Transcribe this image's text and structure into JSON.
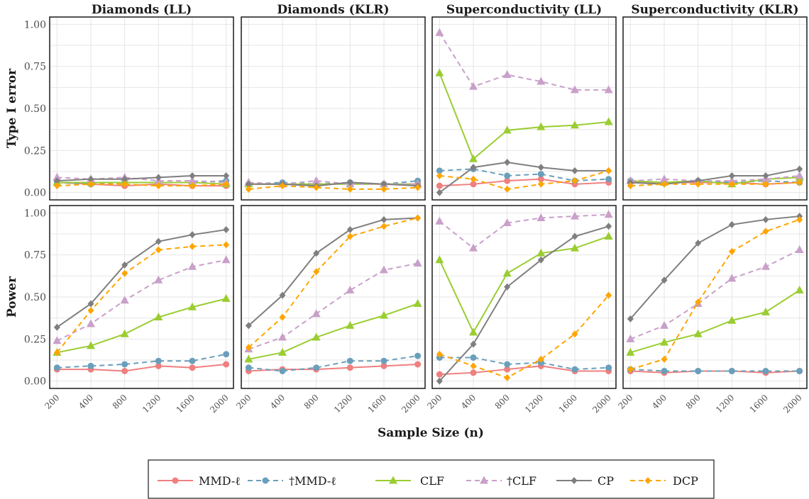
{
  "chart_data": {
    "type": "line",
    "x_categories": [
      "200",
      "400",
      "800",
      "1200",
      "1600",
      "2000"
    ],
    "xlabel": "Sample Size (n)",
    "ylim": [
      0,
      1
    ],
    "yticks": [
      "0.00",
      "0.25",
      "0.50",
      "0.75",
      "1.00"
    ],
    "grid": true,
    "legend_position": "bottom",
    "columns": [
      "Diamonds (LL)",
      "Diamonds (KLR)",
      "Superconductivity (LL)",
      "Superconductivity (KLR)"
    ],
    "rows": [
      "Type I error",
      "Power"
    ],
    "series_styles": [
      {
        "name": "MMD-ℓ",
        "color": "#F07F7F",
        "dashed": false,
        "marker": "circle"
      },
      {
        "name": "†MMD-ℓ",
        "color": "#6A9FBB",
        "dashed": true,
        "marker": "circle"
      },
      {
        "name": "CLF",
        "color": "#9ACD32",
        "dashed": false,
        "marker": "triangle"
      },
      {
        "name": "†CLF",
        "color": "#C9A0C9",
        "dashed": true,
        "marker": "triangle"
      },
      {
        "name": "CP",
        "color": "#7F7F7F",
        "dashed": false,
        "marker": "diamond"
      },
      {
        "name": "DCP",
        "color": "#FFA500",
        "dashed": true,
        "marker": "diamond"
      }
    ],
    "panels": [
      {
        "row": 0,
        "col": 0,
        "series": [
          {
            "name": "MMD-ℓ",
            "values": [
              0.06,
              0.05,
              0.04,
              0.05,
              0.04,
              0.04
            ]
          },
          {
            "name": "†MMD-ℓ",
            "values": [
              0.06,
              0.05,
              0.06,
              0.06,
              0.06,
              0.07
            ]
          },
          {
            "name": "CLF",
            "values": [
              0.06,
              0.06,
              0.06,
              0.06,
              0.06,
              0.05
            ]
          },
          {
            "name": "†CLF",
            "values": [
              0.09,
              0.08,
              0.09,
              0.07,
              0.07,
              0.06
            ]
          },
          {
            "name": "CP",
            "values": [
              0.07,
              0.08,
              0.08,
              0.09,
              0.1,
              0.1
            ]
          },
          {
            "name": "DCP",
            "values": [
              0.04,
              0.05,
              0.05,
              0.04,
              0.04,
              0.05
            ]
          }
        ]
      },
      {
        "row": 0,
        "col": 1,
        "series": [
          {
            "name": "MMD-ℓ",
            "values": [
              0.05,
              0.05,
              0.04,
              0.06,
              0.05,
              0.05
            ]
          },
          {
            "name": "†MMD-ℓ",
            "values": [
              0.05,
              0.06,
              0.05,
              0.06,
              0.05,
              0.07
            ]
          },
          {
            "name": "CLF",
            "values": [
              0.05,
              0.05,
              0.05,
              0.05,
              0.05,
              0.05
            ]
          },
          {
            "name": "†CLF",
            "values": [
              0.06,
              0.05,
              0.07,
              0.05,
              0.05,
              0.05
            ]
          },
          {
            "name": "CP",
            "values": [
              0.05,
              0.05,
              0.04,
              0.06,
              0.05,
              0.04
            ]
          },
          {
            "name": "DCP",
            "values": [
              0.02,
              0.04,
              0.03,
              0.02,
              0.02,
              0.03
            ]
          }
        ]
      },
      {
        "row": 0,
        "col": 2,
        "series": [
          {
            "name": "MMD-ℓ",
            "values": [
              0.04,
              0.05,
              0.07,
              0.08,
              0.05,
              0.06
            ]
          },
          {
            "name": "†MMD-ℓ",
            "values": [
              0.13,
              0.14,
              0.1,
              0.11,
              0.07,
              0.08
            ]
          },
          {
            "name": "CLF",
            "values": [
              0.71,
              0.2,
              0.37,
              0.39,
              0.4,
              0.42
            ]
          },
          {
            "name": "†CLF",
            "values": [
              0.95,
              0.63,
              0.7,
              0.66,
              0.61,
              0.61
            ]
          },
          {
            "name": "CP",
            "values": [
              0.0,
              0.15,
              0.18,
              0.15,
              0.13,
              0.13
            ]
          },
          {
            "name": "DCP",
            "values": [
              0.1,
              0.08,
              0.02,
              0.05,
              0.07,
              0.13
            ]
          }
        ]
      },
      {
        "row": 0,
        "col": 3,
        "series": [
          {
            "name": "MMD-ℓ",
            "values": [
              0.06,
              0.06,
              0.06,
              0.06,
              0.05,
              0.06
            ]
          },
          {
            "name": "†MMD-ℓ",
            "values": [
              0.07,
              0.06,
              0.07,
              0.06,
              0.07,
              0.06
            ]
          },
          {
            "name": "CLF",
            "values": [
              0.07,
              0.06,
              0.07,
              0.05,
              0.08,
              0.09
            ]
          },
          {
            "name": "†CLF",
            "values": [
              0.07,
              0.08,
              0.07,
              0.07,
              0.08,
              0.1
            ]
          },
          {
            "name": "CP",
            "values": [
              0.06,
              0.05,
              0.07,
              0.1,
              0.1,
              0.14
            ]
          },
          {
            "name": "DCP",
            "values": [
              0.04,
              0.05,
              0.05,
              0.05,
              0.05,
              0.06
            ]
          }
        ]
      },
      {
        "row": 1,
        "col": 0,
        "series": [
          {
            "name": "MMD-ℓ",
            "values": [
              0.07,
              0.07,
              0.06,
              0.09,
              0.08,
              0.1
            ]
          },
          {
            "name": "†MMD-ℓ",
            "values": [
              0.08,
              0.09,
              0.1,
              0.12,
              0.12,
              0.16
            ]
          },
          {
            "name": "CLF",
            "values": [
              0.17,
              0.21,
              0.28,
              0.38,
              0.44,
              0.49
            ]
          },
          {
            "name": "†CLF",
            "values": [
              0.24,
              0.34,
              0.48,
              0.6,
              0.68,
              0.72
            ]
          },
          {
            "name": "CP",
            "values": [
              0.32,
              0.46,
              0.69,
              0.83,
              0.87,
              0.9
            ]
          },
          {
            "name": "DCP",
            "values": [
              0.17,
              0.42,
              0.64,
              0.78,
              0.8,
              0.81
            ]
          }
        ]
      },
      {
        "row": 1,
        "col": 1,
        "series": [
          {
            "name": "MMD-ℓ",
            "values": [
              0.06,
              0.07,
              0.07,
              0.08,
              0.09,
              0.1
            ]
          },
          {
            "name": "†MMD-ℓ",
            "values": [
              0.08,
              0.06,
              0.08,
              0.12,
              0.12,
              0.15
            ]
          },
          {
            "name": "CLF",
            "values": [
              0.13,
              0.17,
              0.26,
              0.33,
              0.39,
              0.46
            ]
          },
          {
            "name": "†CLF",
            "values": [
              0.19,
              0.26,
              0.4,
              0.54,
              0.66,
              0.7
            ]
          },
          {
            "name": "CP",
            "values": [
              0.33,
              0.51,
              0.76,
              0.9,
              0.96,
              0.97
            ]
          },
          {
            "name": "DCP",
            "values": [
              0.2,
              0.38,
              0.65,
              0.86,
              0.92,
              0.97
            ]
          }
        ]
      },
      {
        "row": 1,
        "col": 2,
        "series": [
          {
            "name": "MMD-ℓ",
            "values": [
              0.04,
              0.05,
              0.07,
              0.09,
              0.06,
              0.06
            ]
          },
          {
            "name": "†MMD-ℓ",
            "values": [
              0.14,
              0.14,
              0.1,
              0.11,
              0.07,
              0.08
            ]
          },
          {
            "name": "CLF",
            "values": [
              0.72,
              0.29,
              0.64,
              0.76,
              0.79,
              0.86
            ]
          },
          {
            "name": "†CLF",
            "values": [
              0.95,
              0.79,
              0.94,
              0.97,
              0.98,
              0.99
            ]
          },
          {
            "name": "CP",
            "values": [
              0.0,
              0.22,
              0.56,
              0.72,
              0.86,
              0.92
            ]
          },
          {
            "name": "DCP",
            "values": [
              0.16,
              0.09,
              0.02,
              0.13,
              0.28,
              0.51
            ]
          }
        ]
      },
      {
        "row": 1,
        "col": 3,
        "series": [
          {
            "name": "MMD-ℓ",
            "values": [
              0.06,
              0.05,
              0.06,
              0.06,
              0.05,
              0.06
            ]
          },
          {
            "name": "†MMD-ℓ",
            "values": [
              0.07,
              0.06,
              0.06,
              0.06,
              0.06,
              0.06
            ]
          },
          {
            "name": "CLF",
            "values": [
              0.17,
              0.23,
              0.28,
              0.36,
              0.41,
              0.54
            ]
          },
          {
            "name": "†CLF",
            "values": [
              0.25,
              0.33,
              0.46,
              0.61,
              0.68,
              0.78
            ]
          },
          {
            "name": "CP",
            "values": [
              0.37,
              0.6,
              0.82,
              0.93,
              0.96,
              0.98
            ]
          },
          {
            "name": "DCP",
            "values": [
              0.07,
              0.13,
              0.47,
              0.77,
              0.89,
              0.96
            ]
          }
        ]
      }
    ]
  }
}
